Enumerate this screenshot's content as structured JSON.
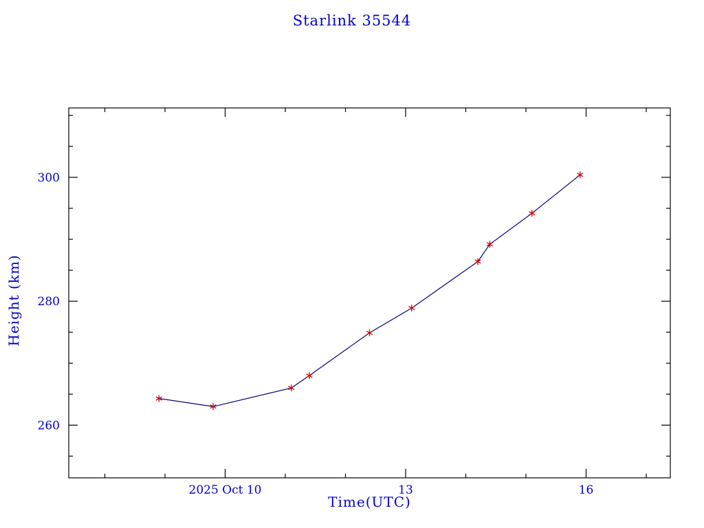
{
  "chart_data": {
    "type": "line",
    "title": "Starlink 35544",
    "xlabel": "Time(UTC)",
    "ylabel": "Height (km)",
    "xlim": [
      7.4,
      17.4
    ],
    "ylim": [
      251.5,
      311.2
    ],
    "x_ticks": [
      {
        "value": 10,
        "label": "2025 Oct 10"
      },
      {
        "value": 13,
        "label": "13"
      },
      {
        "value": 16,
        "label": "16"
      }
    ],
    "x_minor_step": 1,
    "y_ticks": [
      {
        "value": 260,
        "label": "260"
      },
      {
        "value": 280,
        "label": "280"
      },
      {
        "value": 300,
        "label": "300"
      }
    ],
    "y_minor_step": 5,
    "series": [
      {
        "name": "height",
        "marker": "asterisk",
        "x": [
          8.9,
          9.8,
          11.1,
          11.4,
          12.4,
          13.1,
          14.2,
          14.4,
          15.1,
          15.9
        ],
        "y": [
          264.3,
          263.0,
          266.0,
          268.0,
          274.9,
          278.9,
          286.4,
          289.2,
          294.2,
          300.4
        ]
      }
    ],
    "legend": "none",
    "grid": false,
    "colors": {
      "line": "#000080",
      "marker": "#cc0000",
      "axis": "#000000",
      "text": "#0000cd"
    }
  }
}
